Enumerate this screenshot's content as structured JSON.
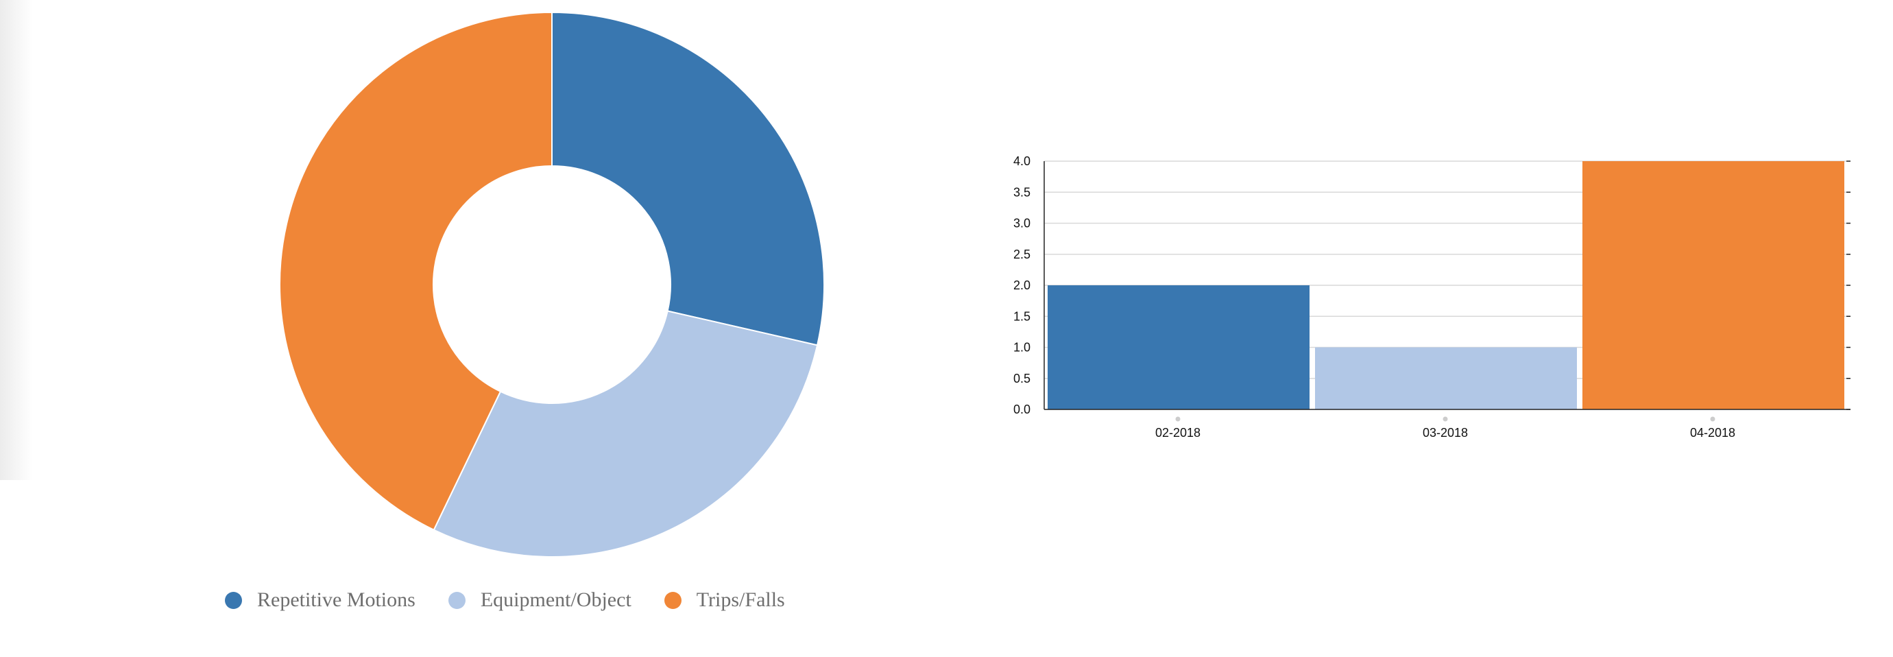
{
  "chart_data": [
    {
      "type": "pie",
      "labels": [
        "Repetitive Motions",
        "Equipment/Object",
        "Trips/Falls"
      ],
      "values": [
        2,
        2,
        3
      ],
      "colors": [
        "#3977b0",
        "#b1c7e6",
        "#f08637"
      ],
      "donut": true,
      "legend_position": "bottom",
      "title": ""
    },
    {
      "type": "bar",
      "categories": [
        "02-2018",
        "03-2018",
        "04-2018"
      ],
      "values": [
        2,
        1,
        4
      ],
      "colors": [
        "#3977b0",
        "#b1c7e6",
        "#f08637"
      ],
      "ylim": [
        0,
        4
      ],
      "yticks": [
        "0.0",
        "0.5",
        "1.0",
        "1.5",
        "2.0",
        "2.5",
        "3.0",
        "3.5",
        "4.0"
      ],
      "grid": true,
      "xlabel": "",
      "ylabel": "",
      "title": ""
    }
  ]
}
